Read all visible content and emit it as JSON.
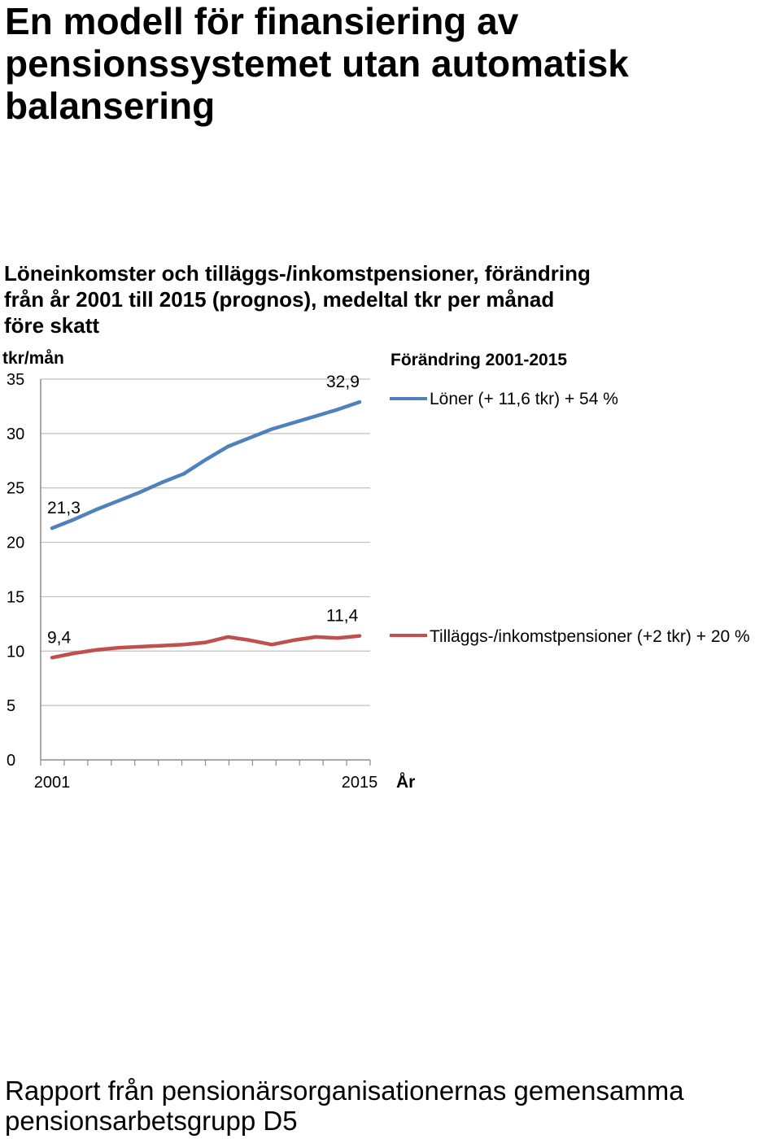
{
  "document": {
    "title_lines": [
      "En modell för finansiering av",
      "pensionssystemet utan automatisk",
      "balansering"
    ],
    "footer_lines": [
      "Rapport från pensionärsorganisationernas gemensamma",
      "pensionsarbetsgrupp D5"
    ]
  },
  "chart_data": {
    "type": "line",
    "title_lines": [
      "Löneinkomster och tilläggs-/inkomstpensioner, förändring",
      "från år 2001 till 2015 (prognos), medeltal tkr per månad",
      "före skatt"
    ],
    "ylabel": "tkr/mån",
    "xlabel": "År",
    "ylim": [
      0,
      35
    ],
    "yticks": [
      0,
      5,
      10,
      15,
      20,
      25,
      30,
      35
    ],
    "x": [
      2001,
      2002,
      2003,
      2004,
      2005,
      2006,
      2007,
      2008,
      2009,
      2010,
      2011,
      2012,
      2013,
      2014,
      2015
    ],
    "xtick_labels": [
      "2001",
      "2015"
    ],
    "grid": true,
    "legend_title": "Förändring 2001-2015",
    "series": [
      {
        "name": "Löner (+ 11,6 tkr) + 54 %",
        "color": "#4f81bd",
        "values": [
          21.3,
          22.1,
          23.0,
          23.8,
          24.6,
          25.5,
          26.3,
          27.6,
          28.8,
          29.6,
          30.4,
          31.0,
          31.6,
          32.2,
          32.9
        ],
        "labels": [
          {
            "index": 0,
            "text": "21,3"
          },
          {
            "index": 14,
            "text": "32,9"
          }
        ]
      },
      {
        "name": "Tilläggs-/inkomstpensioner (+2 tkr) + 20 %",
        "color": "#c0504d",
        "values": [
          9.4,
          9.8,
          10.1,
          10.3,
          10.4,
          10.5,
          10.6,
          10.8,
          11.3,
          11.0,
          10.6,
          11.0,
          11.3,
          11.2,
          11.4
        ],
        "labels": [
          {
            "index": 0,
            "text": "9,4"
          },
          {
            "index": 14,
            "text": "11,4"
          }
        ]
      }
    ]
  }
}
